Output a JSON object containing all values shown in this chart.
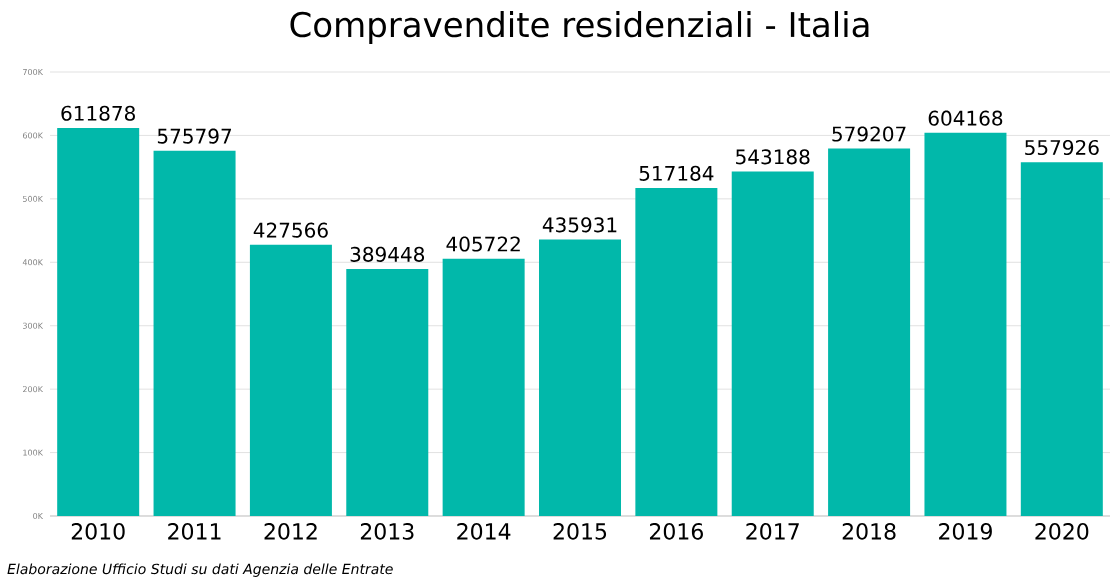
{
  "chart_data": {
    "type": "bar",
    "title": "Compravendite residenziali - Italia",
    "categories": [
      "2010",
      "2011",
      "2012",
      "2013",
      "2014",
      "2015",
      "2016",
      "2017",
      "2018",
      "2019",
      "2020"
    ],
    "values": [
      611878,
      575797,
      427566,
      389448,
      405722,
      435931,
      517184,
      543188,
      579207,
      604168,
      557926
    ],
    "color": "#01b8aa",
    "data_labels": true,
    "grid": "y",
    "ylim": [
      0,
      700000
    ],
    "yticks": [
      {
        "value": 0,
        "label": "0K"
      },
      {
        "value": 100000,
        "label": "100K"
      },
      {
        "value": 200000,
        "label": "200K"
      },
      {
        "value": 300000,
        "label": "300K"
      },
      {
        "value": 400000,
        "label": "400K"
      },
      {
        "value": 500000,
        "label": "500K"
      },
      {
        "value": 600000,
        "label": "600K"
      },
      {
        "value": 700000,
        "label": "700K"
      }
    ],
    "annotations": [
      "Elaborazione Ufficio Studi su dati Agenzia delle Entrate"
    ]
  }
}
